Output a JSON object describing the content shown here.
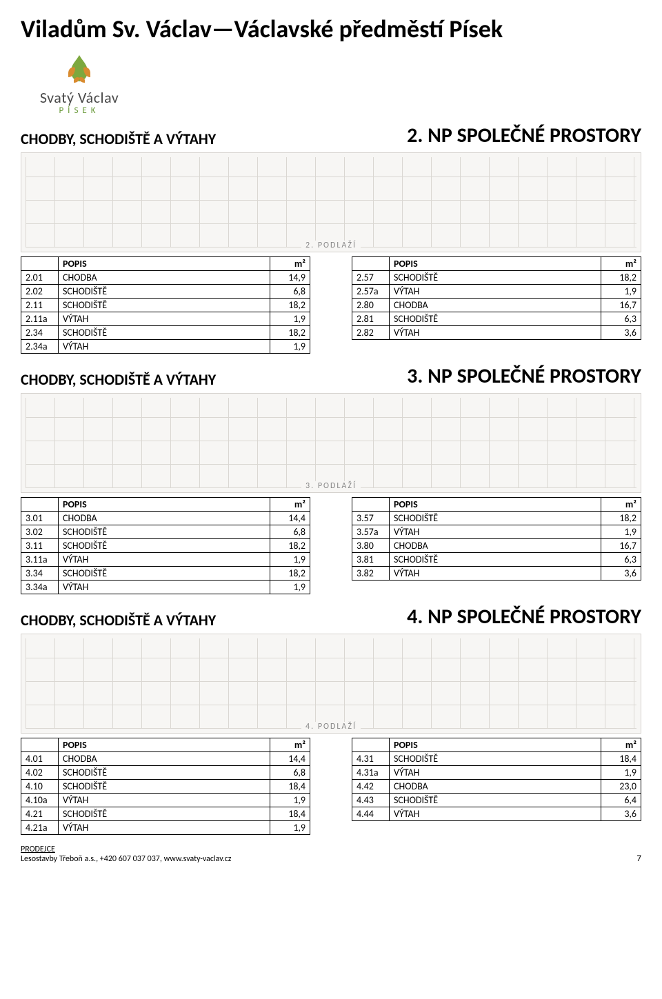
{
  "title": "Viladům Sv. Václav—Václavské předměstí Písek",
  "logo": {
    "line1": "Svatý Václav",
    "line2": "PÍSEK",
    "leaf_color": "#7da83e",
    "petal_color": "#d98b2f"
  },
  "sections": [
    {
      "left_label": "CHODBY, SCHODIŠTĚ A VÝTAHY",
      "right_label": "2. NP SPOLEČNÉ PROSTORY",
      "floor_label": "2. PODLAŽÍ",
      "table_left": {
        "columns": [
          "",
          "POPIS",
          "m²"
        ],
        "rows": [
          [
            "2.01",
            "CHODBA",
            "14,9"
          ],
          [
            "2.02",
            "SCHODIŠTĚ",
            "6,8"
          ],
          [
            "2.11",
            "SCHODIŠTĚ",
            "18,2"
          ],
          [
            "2.11a",
            "VÝTAH",
            "1,9"
          ],
          [
            "2.34",
            "SCHODIŠTĚ",
            "18,2"
          ],
          [
            "2.34a",
            "VÝTAH",
            "1,9"
          ]
        ]
      },
      "table_right": {
        "columns": [
          "",
          "POPIS",
          "m²"
        ],
        "rows": [
          [
            "2.57",
            "SCHODIŠTĚ",
            "18,2"
          ],
          [
            "2.57a",
            "VÝTAH",
            "1,9"
          ],
          [
            "2.80",
            "CHODBA",
            "16,7"
          ],
          [
            "2.81",
            "SCHODIŠTĚ",
            "6,3"
          ],
          [
            "2.82",
            "VÝTAH",
            "3,6"
          ]
        ]
      }
    },
    {
      "left_label": "CHODBY, SCHODIŠTĚ A VÝTAHY",
      "right_label": "3. NP SPOLEČNÉ PROSTORY",
      "floor_label": "3. PODLAŽÍ",
      "table_left": {
        "columns": [
          "",
          "POPIS",
          "m²"
        ],
        "rows": [
          [
            "3.01",
            "CHODBA",
            "14,4"
          ],
          [
            "3.02",
            "SCHODIŠTĚ",
            "6,8"
          ],
          [
            "3.11",
            "SCHODIŠTĚ",
            "18,2"
          ],
          [
            "3.11a",
            "VÝTAH",
            "1,9"
          ],
          [
            "3.34",
            "SCHODIŠTĚ",
            "18,2"
          ],
          [
            "3.34a",
            "VÝTAH",
            "1,9"
          ]
        ]
      },
      "table_right": {
        "columns": [
          "",
          "POPIS",
          "m²"
        ],
        "rows": [
          [
            "3.57",
            "SCHODIŠTĚ",
            "18,2"
          ],
          [
            "3.57a",
            "VÝTAH",
            "1,9"
          ],
          [
            "3.80",
            "CHODBA",
            "16,7"
          ],
          [
            "3.81",
            "SCHODIŠTĚ",
            "6,3"
          ],
          [
            "3.82",
            "VÝTAH",
            "3,6"
          ]
        ]
      }
    },
    {
      "left_label": "CHODBY, SCHODIŠTĚ A VÝTAHY",
      "right_label": "4. NP SPOLEČNÉ PROSTORY",
      "floor_label": "4. PODLAŽÍ",
      "table_left": {
        "columns": [
          "",
          "POPIS",
          "m²"
        ],
        "rows": [
          [
            "4.01",
            "CHODBA",
            "14,4"
          ],
          [
            "4.02",
            "SCHODIŠTĚ",
            "6,8"
          ],
          [
            "4.10",
            "SCHODIŠTĚ",
            "18,4"
          ],
          [
            "4.10a",
            "VÝTAH",
            "1,9"
          ],
          [
            "4.21",
            "SCHODIŠTĚ",
            "18,4"
          ],
          [
            "4.21a",
            "VÝTAH",
            "1,9"
          ]
        ]
      },
      "table_right": {
        "columns": [
          "",
          "POPIS",
          "m²"
        ],
        "rows": [
          [
            "4.31",
            "SCHODIŠTĚ",
            "18,4"
          ],
          [
            "4.31a",
            "VÝTAH",
            "1,9"
          ],
          [
            "4.42",
            "CHODBA",
            "23,0"
          ],
          [
            "4.43",
            "SCHODIŠTĚ",
            "6,4"
          ],
          [
            "4.44",
            "VÝTAH",
            "3,6"
          ]
        ]
      }
    }
  ],
  "footer": {
    "seller_label": "PRODEJCE",
    "seller_line": "Lesostavby Třeboň a.s., +420 607 037 037, www.svaty-vaclav.cz",
    "page_number": "7"
  }
}
